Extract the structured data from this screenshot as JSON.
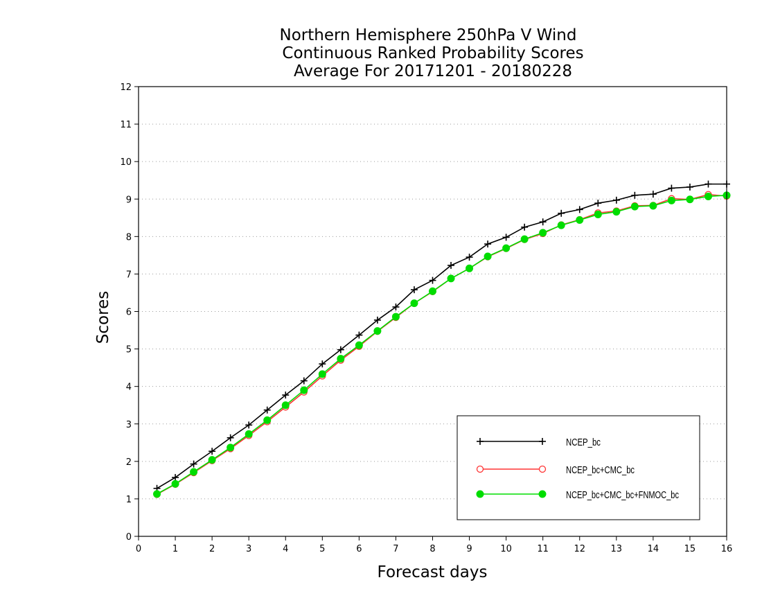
{
  "chart_data": {
    "type": "line",
    "title": [
      "Northern Hemisphere 250hPa V Wind",
      "Continuous Ranked Probability Scores",
      "Average For 20171201 - 20180228"
    ],
    "xlabel": "Forecast days",
    "ylabel": "Scores",
    "xlim": [
      0,
      16
    ],
    "ylim": [
      0,
      12
    ],
    "xticks": [
      0,
      1,
      2,
      3,
      4,
      5,
      6,
      7,
      8,
      9,
      10,
      11,
      12,
      13,
      14,
      15,
      16
    ],
    "yticks": [
      0,
      1,
      2,
      3,
      4,
      5,
      6,
      7,
      8,
      9,
      10,
      11,
      12
    ],
    "grid": "horizontal dotted",
    "legend_position": "bottom-right",
    "x": [
      0.5,
      1,
      1.5,
      2,
      2.5,
      3,
      3.5,
      4,
      4.5,
      5,
      5.5,
      6,
      6.5,
      7,
      7.5,
      8,
      8.5,
      9,
      9.5,
      10,
      10.5,
      11,
      11.5,
      12,
      12.5,
      13,
      13.5,
      14,
      14.5,
      15,
      15.5,
      16
    ],
    "series": [
      {
        "name": "NCEP_bc",
        "color": "#000000",
        "marker": "plus",
        "values": [
          1.28,
          1.57,
          1.93,
          2.27,
          2.63,
          2.97,
          3.37,
          3.77,
          4.15,
          4.6,
          4.98,
          5.37,
          5.77,
          6.12,
          6.58,
          6.83,
          7.23,
          7.45,
          7.8,
          7.98,
          8.25,
          8.39,
          8.62,
          8.72,
          8.89,
          8.97,
          9.1,
          9.13,
          9.29,
          9.32,
          9.4,
          9.4
        ]
      },
      {
        "name": "NCEP_bc+CMC_bc",
        "color": "#ff3333",
        "marker": "open-circle",
        "values": [
          1.12,
          1.39,
          1.7,
          2.02,
          2.34,
          2.69,
          3.06,
          3.45,
          3.85,
          4.28,
          4.7,
          5.07,
          5.47,
          5.84,
          6.22,
          6.53,
          6.88,
          7.15,
          7.46,
          7.68,
          7.92,
          8.08,
          8.31,
          8.45,
          8.63,
          8.68,
          8.82,
          8.83,
          9.01,
          8.99,
          9.12,
          9.08
        ]
      },
      {
        "name": "NCEP_bc+CMC_bc+FNMOC_bc",
        "color": "#00dd00",
        "marker": "filled-circle",
        "values": [
          1.13,
          1.4,
          1.72,
          2.04,
          2.37,
          2.73,
          3.1,
          3.5,
          3.9,
          4.33,
          4.74,
          5.1,
          5.48,
          5.86,
          6.22,
          6.54,
          6.88,
          7.15,
          7.47,
          7.69,
          7.93,
          8.1,
          8.3,
          8.44,
          8.59,
          8.66,
          8.8,
          8.82,
          8.96,
          8.99,
          9.07,
          9.1
        ]
      }
    ]
  }
}
